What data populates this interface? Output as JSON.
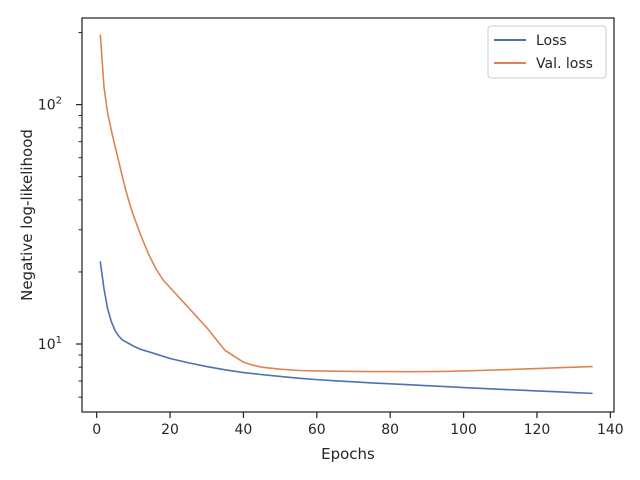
{
  "chart_data": {
    "type": "line",
    "title": "",
    "xlabel": "Epochs",
    "ylabel": "Negative log-likelihood",
    "xlim": [
      -4,
      141
    ],
    "ylim": [
      5.2,
      230
    ],
    "yscale": "log",
    "xticks": [
      0,
      20,
      40,
      60,
      80,
      100,
      120,
      140
    ],
    "xtick_labels": [
      "0",
      "20",
      "40",
      "60",
      "80",
      "100",
      "120",
      "140"
    ],
    "yticks_major": [
      10,
      100
    ],
    "ytick_base": "10",
    "ytick_exponents": [
      "1",
      "2"
    ],
    "grid": false,
    "legend_position": "top-right",
    "series": [
      {
        "name": "Loss",
        "color": "#4c72b0",
        "x": [
          1,
          2,
          3,
          4,
          5,
          6,
          7,
          8,
          9,
          10,
          12,
          15,
          20,
          25,
          30,
          35,
          40,
          45,
          50,
          55,
          60,
          65,
          70,
          75,
          80,
          85,
          90,
          95,
          100,
          105,
          110,
          115,
          120,
          125,
          130,
          135
        ],
        "y": [
          22,
          17,
          14,
          12.4,
          11.4,
          10.8,
          10.4,
          10.2,
          10.0,
          9.8,
          9.5,
          9.2,
          8.7,
          8.35,
          8.05,
          7.8,
          7.6,
          7.45,
          7.32,
          7.2,
          7.1,
          7.02,
          6.95,
          6.88,
          6.82,
          6.76,
          6.7,
          6.64,
          6.58,
          6.52,
          6.47,
          6.42,
          6.37,
          6.32,
          6.27,
          6.22
        ]
      },
      {
        "name": "Val. loss",
        "color": "#dd8452",
        "x": [
          1,
          2,
          3,
          4,
          5,
          6,
          7,
          8,
          9,
          10,
          12,
          14,
          16,
          18,
          20,
          25,
          30,
          35,
          40,
          42,
          45,
          50,
          55,
          60,
          65,
          70,
          75,
          80,
          85,
          90,
          95,
          100,
          105,
          110,
          115,
          120,
          125,
          130,
          135
        ],
        "y": [
          195,
          118,
          92,
          78,
          67,
          58,
          50,
          43.5,
          38.5,
          34.5,
          28.5,
          24,
          20.8,
          18.6,
          17.2,
          14.2,
          11.7,
          9.4,
          8.4,
          8.2,
          8.0,
          7.85,
          7.75,
          7.72,
          7.7,
          7.68,
          7.67,
          7.67,
          7.66,
          7.67,
          7.68,
          7.72,
          7.76,
          7.8,
          7.85,
          7.9,
          7.95,
          8.0,
          8.05
        ]
      }
    ]
  }
}
